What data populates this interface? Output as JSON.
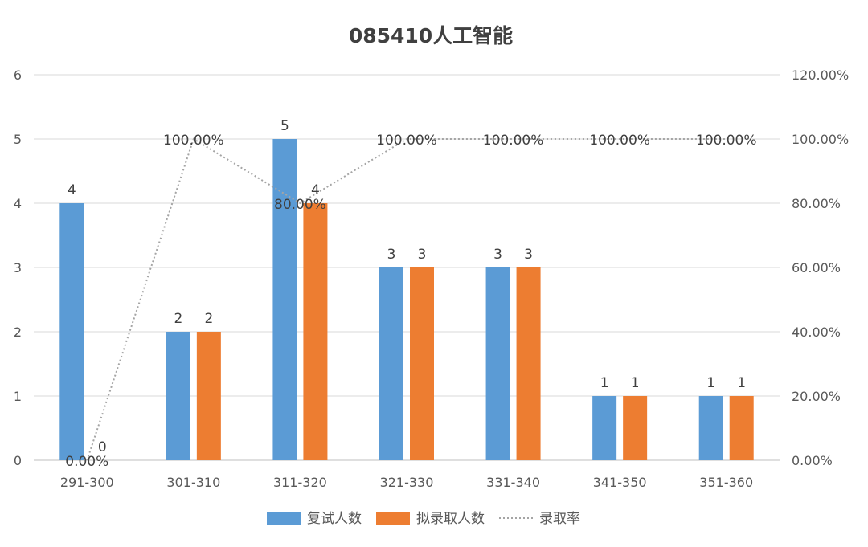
{
  "chart_data": {
    "type": "bar",
    "title": "085410人工智能",
    "categories": [
      "291-300",
      "301-310",
      "311-320",
      "321-330",
      "331-340",
      "341-350",
      "351-360"
    ],
    "series": [
      {
        "name": "复试人数",
        "kind": "bar",
        "axis": "left",
        "color": "#5B9BD5",
        "values": [
          4,
          2,
          5,
          3,
          3,
          1,
          1
        ],
        "labels": [
          "4",
          "2",
          "5",
          "3",
          "3",
          "1",
          "1"
        ]
      },
      {
        "name": "拟录取人数",
        "kind": "bar",
        "axis": "left",
        "color": "#ED7D31",
        "values": [
          0,
          2,
          4,
          3,
          3,
          1,
          1
        ],
        "labels": [
          "0",
          "2",
          "4",
          "3",
          "3",
          "1",
          "1"
        ]
      },
      {
        "name": "录取率",
        "kind": "line",
        "style": "dotted",
        "axis": "right",
        "color": "#A5A5A5",
        "values": [
          0,
          1,
          0.8,
          1,
          1,
          1,
          1
        ],
        "labels": [
          "0.00%",
          "100.00%",
          "80.00%",
          "100.00%",
          "100.00%",
          "100.00%",
          "100.00%"
        ]
      }
    ],
    "y_left": {
      "range": [
        0,
        6
      ],
      "ticks": [
        "0",
        "1",
        "2",
        "3",
        "4",
        "5",
        "6"
      ]
    },
    "y_right": {
      "range": [
        0,
        1.2
      ],
      "ticks": [
        "0.00%",
        "20.00%",
        "40.00%",
        "60.00%",
        "80.00%",
        "100.00%",
        "120.00%"
      ]
    },
    "grid": true,
    "legend_position": "bottom"
  }
}
